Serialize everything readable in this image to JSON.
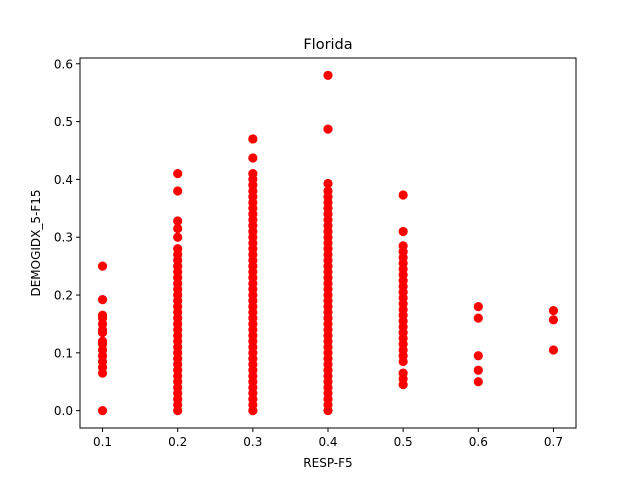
{
  "chart_data": {
    "type": "scatter",
    "title": "Florida",
    "xlabel": "RESP-F5",
    "ylabel": "DEMOGIDX_5-F15",
    "xlim": [
      0.07,
      0.73
    ],
    "ylim": [
      -0.03,
      0.61
    ],
    "xticks": [
      0.1,
      0.2,
      0.3,
      0.4,
      0.5,
      0.6,
      0.7
    ],
    "yticks": [
      0.0,
      0.1,
      0.2,
      0.3,
      0.4,
      0.5,
      0.6
    ],
    "xtick_labels": [
      "0.1",
      "0.2",
      "0.3",
      "0.4",
      "0.5",
      "0.6",
      "0.7"
    ],
    "ytick_labels": [
      "0.0",
      "0.1",
      "0.2",
      "0.3",
      "0.4",
      "0.5",
      "0.6"
    ],
    "grid": false,
    "marker_color": "#ff0000",
    "groups": [
      {
        "x": 0.1,
        "y": [
          0.0,
          0.065,
          0.075,
          0.085,
          0.095,
          0.105,
          0.115,
          0.12,
          0.135,
          0.14,
          0.15,
          0.16,
          0.165,
          0.192,
          0.25
        ]
      },
      {
        "x": 0.2,
        "y": [
          0.0,
          0.01,
          0.02,
          0.03,
          0.04,
          0.05,
          0.06,
          0.07,
          0.08,
          0.09,
          0.1,
          0.11,
          0.12,
          0.13,
          0.14,
          0.15,
          0.16,
          0.17,
          0.18,
          0.19,
          0.2,
          0.21,
          0.22,
          0.23,
          0.24,
          0.25,
          0.26,
          0.27,
          0.28,
          0.3,
          0.315,
          0.328,
          0.38,
          0.41
        ]
      },
      {
        "x": 0.3,
        "y": [
          0.0,
          0.01,
          0.02,
          0.03,
          0.04,
          0.05,
          0.06,
          0.07,
          0.08,
          0.09,
          0.1,
          0.11,
          0.12,
          0.13,
          0.14,
          0.15,
          0.16,
          0.17,
          0.18,
          0.19,
          0.2,
          0.21,
          0.22,
          0.23,
          0.24,
          0.25,
          0.26,
          0.27,
          0.28,
          0.29,
          0.3,
          0.31,
          0.32,
          0.33,
          0.34,
          0.35,
          0.36,
          0.37,
          0.38,
          0.39,
          0.4,
          0.41,
          0.437,
          0.47
        ]
      },
      {
        "x": 0.4,
        "y": [
          0.0,
          0.01,
          0.02,
          0.03,
          0.04,
          0.05,
          0.06,
          0.07,
          0.08,
          0.09,
          0.1,
          0.11,
          0.12,
          0.13,
          0.14,
          0.15,
          0.16,
          0.17,
          0.18,
          0.19,
          0.2,
          0.21,
          0.22,
          0.23,
          0.24,
          0.25,
          0.26,
          0.27,
          0.28,
          0.29,
          0.3,
          0.31,
          0.32,
          0.33,
          0.34,
          0.35,
          0.36,
          0.37,
          0.38,
          0.393,
          0.487,
          0.58
        ]
      },
      {
        "x": 0.5,
        "y": [
          0.045,
          0.055,
          0.065,
          0.085,
          0.095,
          0.105,
          0.115,
          0.125,
          0.135,
          0.145,
          0.155,
          0.165,
          0.175,
          0.185,
          0.195,
          0.205,
          0.215,
          0.225,
          0.235,
          0.245,
          0.255,
          0.265,
          0.275,
          0.285,
          0.31,
          0.373
        ]
      },
      {
        "x": 0.6,
        "y": [
          0.05,
          0.07,
          0.095,
          0.16,
          0.18
        ]
      },
      {
        "x": 0.7,
        "y": [
          0.105,
          0.157,
          0.173
        ]
      }
    ]
  }
}
